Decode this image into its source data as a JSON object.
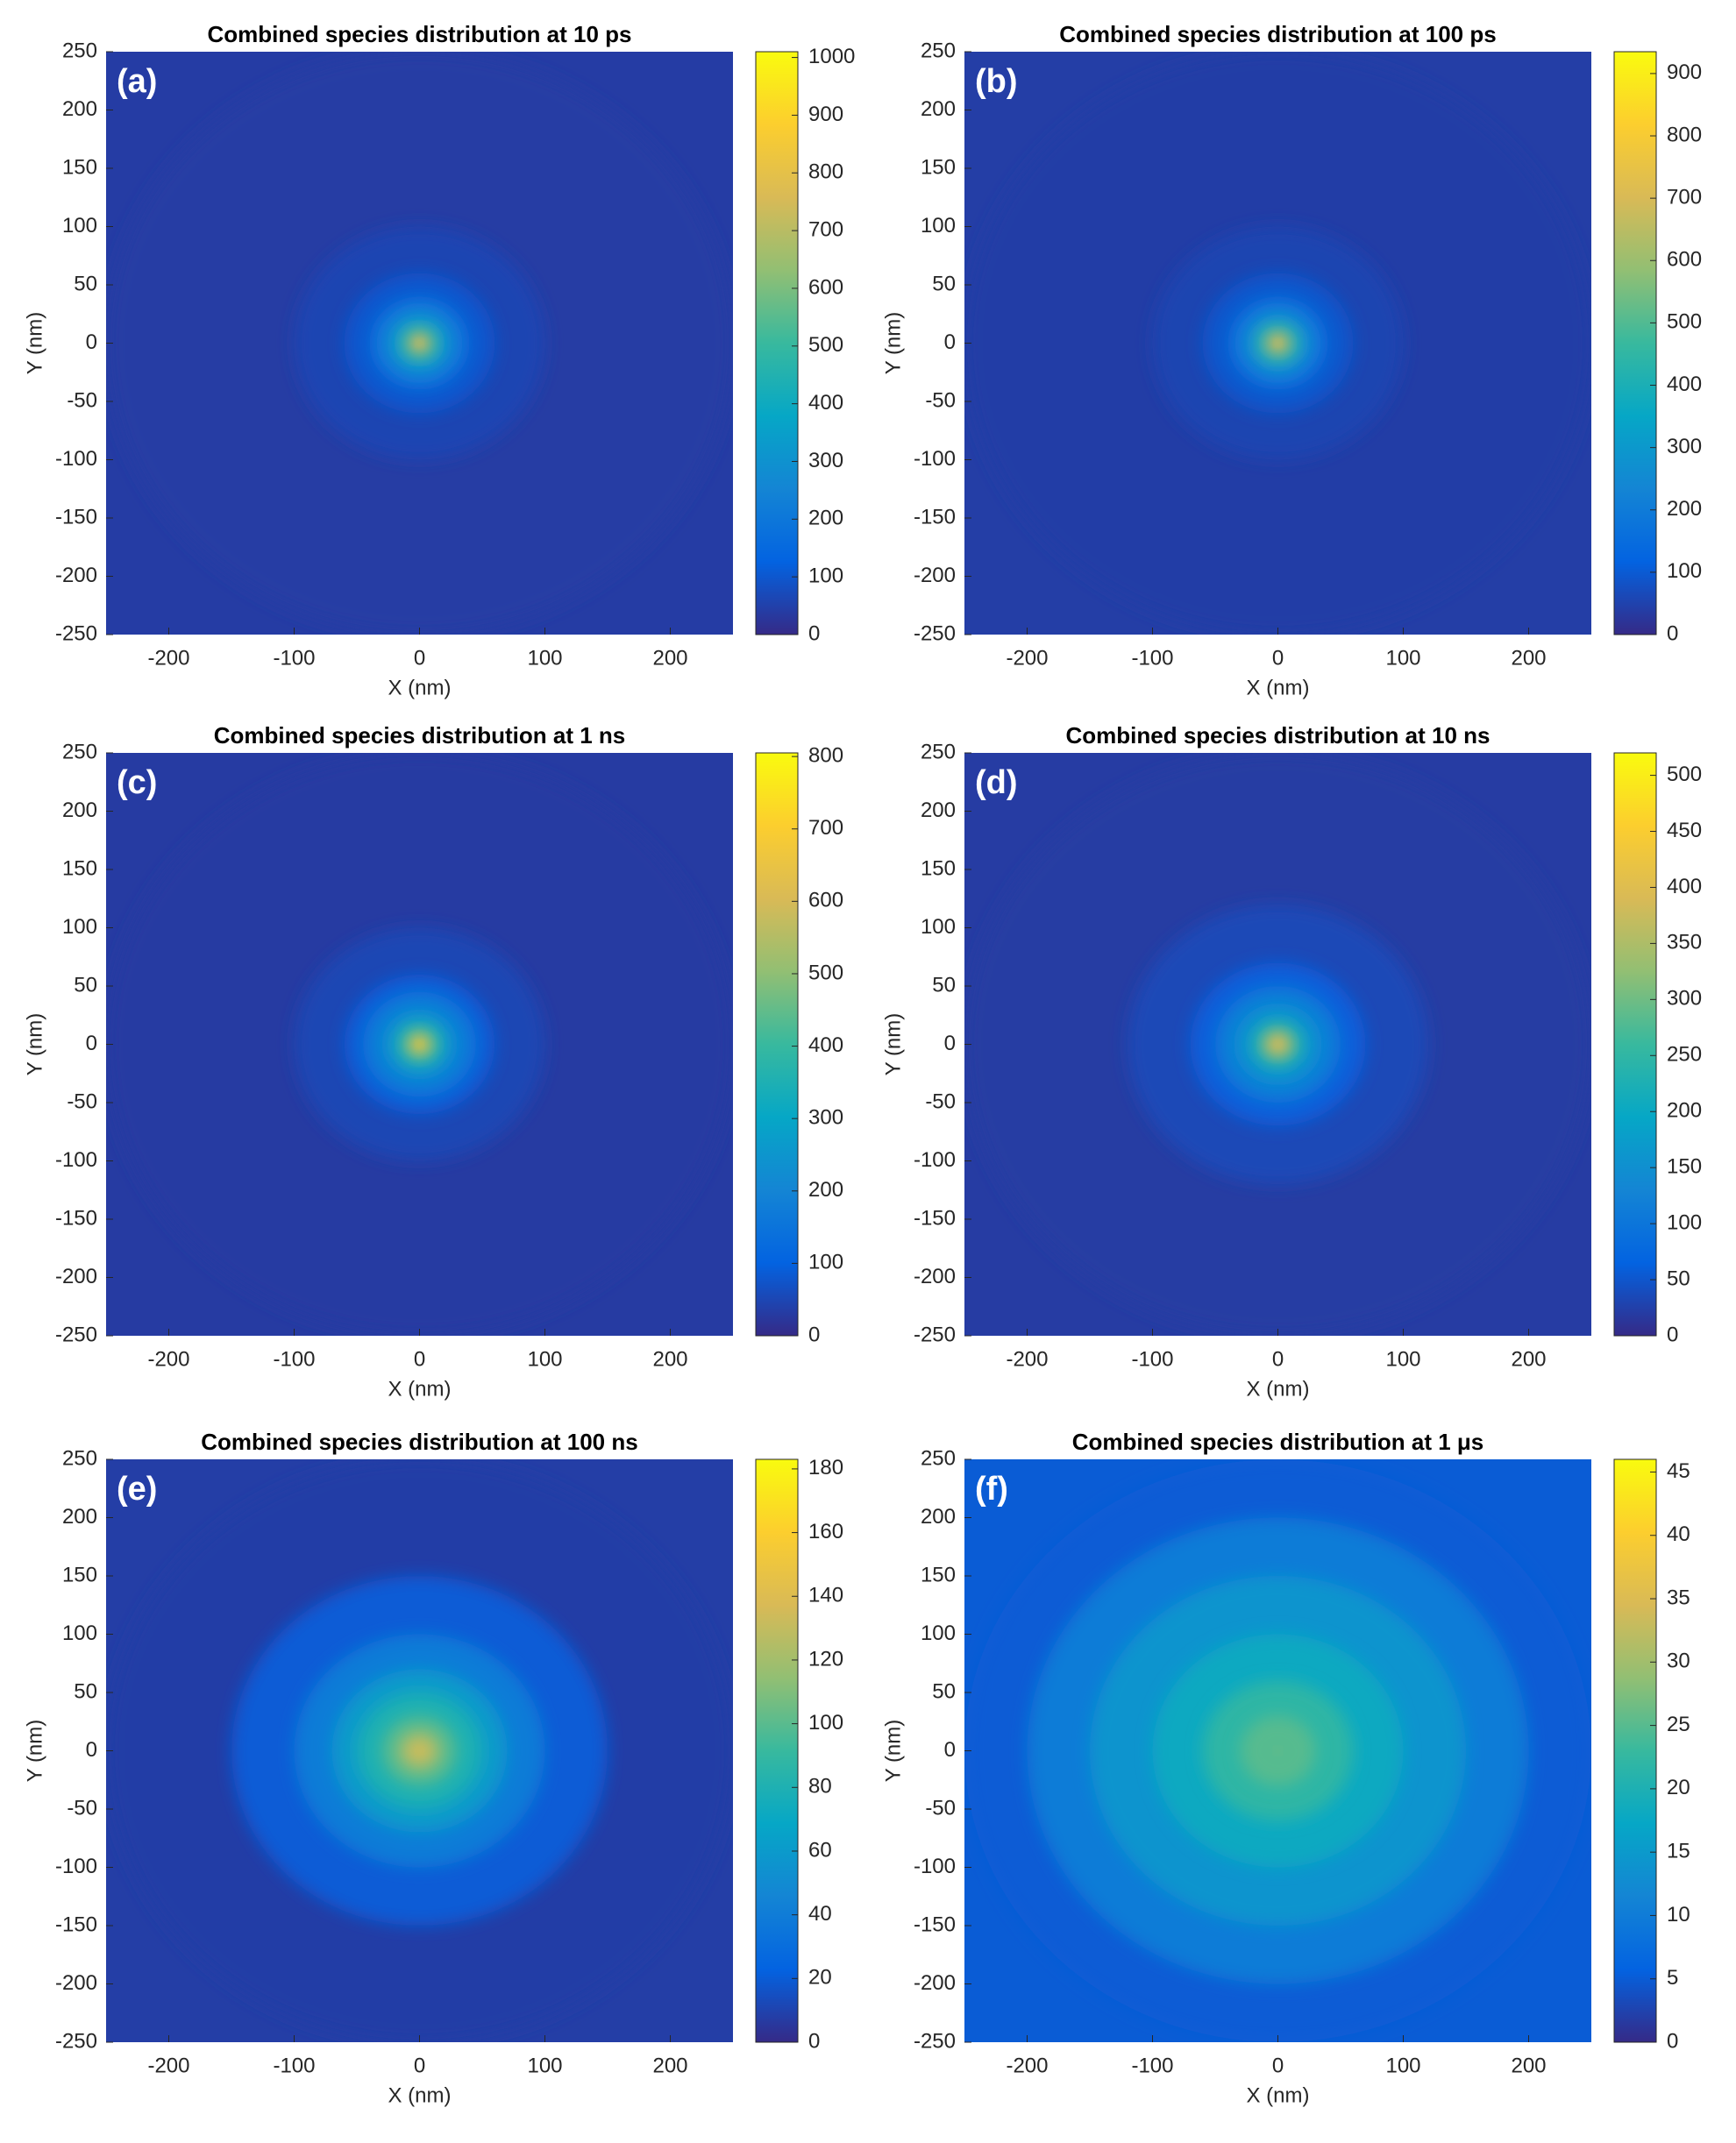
{
  "chart_data": [
    {
      "type": "heatmap",
      "title": "Combined species distribution at 10 ps",
      "panel_label": "(a)",
      "xlabel": "X (nm)",
      "ylabel": "Y (nm)",
      "xlim": [
        -250,
        250
      ],
      "xticks": [
        -200,
        -100,
        0,
        100,
        200
      ],
      "ylim": [
        -250,
        250
      ],
      "yticks": [
        -250,
        -200,
        -150,
        -100,
        -50,
        0,
        50,
        100,
        150,
        200,
        250
      ],
      "clim": [
        0,
        1010
      ],
      "cticks": [
        0,
        100,
        200,
        300,
        400,
        500,
        600,
        700,
        800,
        900,
        1000
      ],
      "colormap": [
        "#352a87",
        "#0363e1",
        "#1485d4",
        "#06a7c6",
        "#38b99e",
        "#92bf73",
        "#d9ba56",
        "#fcce2e",
        "#f9fb0e"
      ],
      "x": [
        250,
        100,
        60,
        40,
        30,
        20,
        10,
        0
      ],
      "values": [
        40,
        60,
        100,
        180,
        250,
        400,
        750,
        800
      ]
    },
    {
      "type": "heatmap",
      "title": "Combined species distribution at 100 ps",
      "panel_label": "(b)",
      "xlabel": "X (nm)",
      "ylabel": "Y (nm)",
      "xlim": [
        -250,
        250
      ],
      "xticks": [
        -200,
        -100,
        0,
        100,
        200
      ],
      "ylim": [
        -250,
        250
      ],
      "yticks": [
        -250,
        -200,
        -150,
        -100,
        -50,
        0,
        50,
        100,
        150,
        200,
        250
      ],
      "clim": [
        0,
        935
      ],
      "cticks": [
        0,
        100,
        200,
        300,
        400,
        500,
        600,
        700,
        800,
        900
      ],
      "colormap": [
        "#352a87",
        "#0363e1",
        "#1485d4",
        "#06a7c6",
        "#38b99e",
        "#92bf73",
        "#d9ba56",
        "#fcce2e",
        "#f9fb0e"
      ],
      "x": [
        250,
        100,
        60,
        40,
        30,
        20,
        10,
        0
      ],
      "values": [
        40,
        55,
        90,
        160,
        230,
        380,
        700,
        780
      ]
    },
    {
      "type": "heatmap",
      "title": "Combined species distribution at 1 ns",
      "panel_label": "(c)",
      "xlabel": "X (nm)",
      "ylabel": "Y (nm)",
      "xlim": [
        -250,
        250
      ],
      "xticks": [
        -200,
        -100,
        0,
        100,
        200
      ],
      "ylim": [
        -250,
        250
      ],
      "yticks": [
        -250,
        -200,
        -150,
        -100,
        -50,
        0,
        50,
        100,
        150,
        200,
        250
      ],
      "clim": [
        0,
        805
      ],
      "cticks": [
        0,
        100,
        200,
        300,
        400,
        500,
        600,
        700,
        800
      ],
      "colormap": [
        "#352a87",
        "#0363e1",
        "#1485d4",
        "#06a7c6",
        "#38b99e",
        "#92bf73",
        "#d9ba56",
        "#fcce2e",
        "#f9fb0e"
      ],
      "x": [
        250,
        100,
        60,
        45,
        30,
        20,
        10,
        0
      ],
      "values": [
        30,
        50,
        90,
        170,
        230,
        350,
        650,
        700
      ]
    },
    {
      "type": "heatmap",
      "title": "Combined species distribution at 10 ns",
      "panel_label": "(d)",
      "xlabel": "X (nm)",
      "ylabel": "Y (nm)",
      "xlim": [
        -250,
        250
      ],
      "xticks": [
        -200,
        -100,
        0,
        100,
        200
      ],
      "ylim": [
        -250,
        250
      ],
      "yticks": [
        -250,
        -200,
        -150,
        -100,
        -50,
        0,
        50,
        100,
        150,
        200,
        250
      ],
      "clim": [
        0,
        520
      ],
      "cticks": [
        0,
        50,
        100,
        150,
        200,
        250,
        300,
        350,
        400,
        450,
        500
      ],
      "colormap": [
        "#352a87",
        "#0363e1",
        "#1485d4",
        "#06a7c6",
        "#38b99e",
        "#92bf73",
        "#d9ba56",
        "#fcce2e",
        "#f9fb0e"
      ],
      "x": [
        250,
        120,
        70,
        50,
        35,
        22,
        12,
        0
      ],
      "values": [
        20,
        35,
        60,
        110,
        150,
        220,
        380,
        400
      ]
    },
    {
      "type": "heatmap",
      "title": "Combined species distribution at 100 ns",
      "panel_label": "(e)",
      "xlabel": "X (nm)",
      "ylabel": "Y (nm)",
      "xlim": [
        -250,
        250
      ],
      "xticks": [
        -200,
        -100,
        0,
        100,
        200
      ],
      "ylim": [
        -250,
        250
      ],
      "yticks": [
        -250,
        -200,
        -150,
        -100,
        -50,
        0,
        50,
        100,
        150,
        200,
        250
      ],
      "clim": [
        0,
        183
      ],
      "cticks": [
        0,
        20,
        40,
        60,
        80,
        100,
        120,
        140,
        160,
        180
      ],
      "colormap": [
        "#352a87",
        "#0363e1",
        "#1485d4",
        "#06a7c6",
        "#38b99e",
        "#92bf73",
        "#d9ba56",
        "#fcce2e",
        "#f9fb0e"
      ],
      "x": [
        250,
        150,
        100,
        70,
        50,
        30,
        15,
        0
      ],
      "values": [
        8,
        20,
        40,
        60,
        80,
        100,
        130,
        140
      ]
    },
    {
      "type": "heatmap",
      "title": "Combined species distribution at 1 μs",
      "panel_label": "(f)",
      "xlabel": "X (nm)",
      "ylabel": "Y (nm)",
      "xlim": [
        -250,
        250
      ],
      "xticks": [
        -200,
        -100,
        0,
        100,
        200
      ],
      "ylim": [
        -250,
        250
      ],
      "yticks": [
        -250,
        -200,
        -150,
        -100,
        -50,
        0,
        50,
        100,
        150,
        200,
        250
      ],
      "clim": [
        0,
        46
      ],
      "cticks": [
        0,
        5,
        10,
        15,
        20,
        25,
        30,
        35,
        40,
        45
      ],
      "colormap": [
        "#352a87",
        "#0363e1",
        "#1485d4",
        "#06a7c6",
        "#38b99e",
        "#92bf73",
        "#d9ba56",
        "#fcce2e",
        "#f9fb0e"
      ],
      "x": [
        250,
        200,
        150,
        100,
        60,
        30,
        0
      ],
      "values": [
        5,
        10,
        14,
        18,
        22,
        25,
        30
      ]
    }
  ]
}
